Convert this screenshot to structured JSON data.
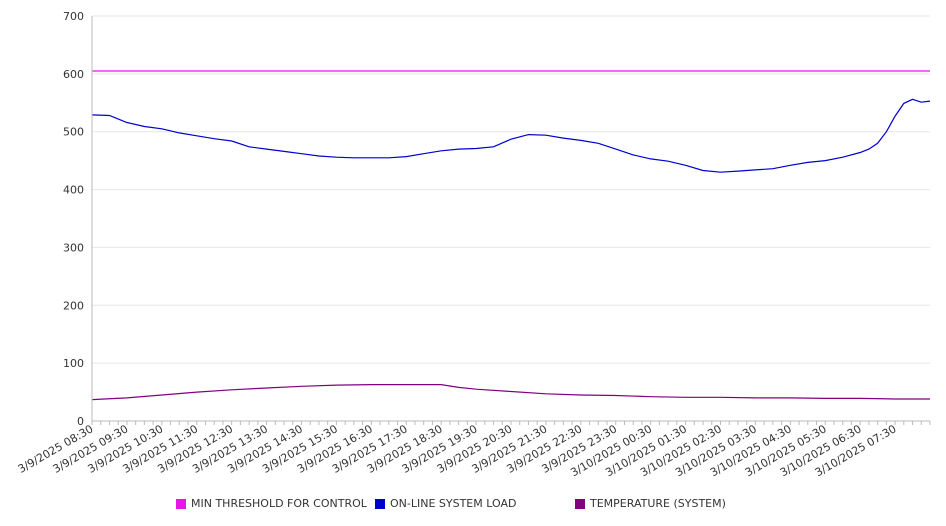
{
  "chart_data": {
    "type": "line",
    "title": "",
    "xlabel": "",
    "ylabel": "",
    "ylim": [
      0,
      700
    ],
    "yticks": [
      0,
      100,
      200,
      300,
      400,
      500,
      600,
      700
    ],
    "grid": "horizontal",
    "legend_position": "bottom",
    "x_start": "3/9/2025 08:30",
    "x_end": "3/10/2025 08:30",
    "x_tick_labels": [
      "3/9/2025 08:30",
      "3/9/2025 09:30",
      "3/9/2025 10:30",
      "3/9/2025 11:30",
      "3/9/2025 12:30",
      "3/9/2025 13:30",
      "3/9/2025 14:30",
      "3/9/2025 15:30",
      "3/9/2025 16:30",
      "3/9/2025 17:30",
      "3/9/2025 18:30",
      "3/9/2025 19:30",
      "3/9/2025 20:30",
      "3/9/2025 21:30",
      "3/9/2025 22:30",
      "3/9/2025 23:30",
      "3/10/2025 00:30",
      "3/10/2025 01:30",
      "3/10/2025 02:30",
      "3/10/2025 03:30",
      "3/10/2025 04:30",
      "3/10/2025 05:30",
      "3/10/2025 06:30",
      "3/10/2025 07:30"
    ],
    "series": [
      {
        "name": "MIN THRESHOLD FOR CONTROL",
        "color": "#e815e8",
        "points": [
          {
            "x": "3/9/2025 08:30",
            "y": 605
          },
          {
            "x": "3/10/2025 08:30",
            "y": 605
          }
        ]
      },
      {
        "name": "ON-LINE SYSTEM LOAD",
        "color": "#0000cc",
        "points": [
          {
            "x": "3/9/2025 08:30",
            "y": 529
          },
          {
            "x": "3/9/2025 09:00",
            "y": 528
          },
          {
            "x": "3/9/2025 09:30",
            "y": 516
          },
          {
            "x": "3/9/2025 10:00",
            "y": 509
          },
          {
            "x": "3/9/2025 10:30",
            "y": 505
          },
          {
            "x": "3/9/2025 11:00",
            "y": 498
          },
          {
            "x": "3/9/2025 11:30",
            "y": 493
          },
          {
            "x": "3/9/2025 12:00",
            "y": 488
          },
          {
            "x": "3/9/2025 12:30",
            "y": 484
          },
          {
            "x": "3/9/2025 13:00",
            "y": 474
          },
          {
            "x": "3/9/2025 13:30",
            "y": 470
          },
          {
            "x": "3/9/2025 14:00",
            "y": 466
          },
          {
            "x": "3/9/2025 14:30",
            "y": 462
          },
          {
            "x": "3/9/2025 15:00",
            "y": 458
          },
          {
            "x": "3/9/2025 15:30",
            "y": 456
          },
          {
            "x": "3/9/2025 16:00",
            "y": 455
          },
          {
            "x": "3/9/2025 16:30",
            "y": 455
          },
          {
            "x": "3/9/2025 17:00",
            "y": 455
          },
          {
            "x": "3/9/2025 17:30",
            "y": 457
          },
          {
            "x": "3/9/2025 18:00",
            "y": 462
          },
          {
            "x": "3/9/2025 18:30",
            "y": 467
          },
          {
            "x": "3/9/2025 19:00",
            "y": 470
          },
          {
            "x": "3/9/2025 19:30",
            "y": 471
          },
          {
            "x": "3/9/2025 20:00",
            "y": 474
          },
          {
            "x": "3/9/2025 20:30",
            "y": 487
          },
          {
            "x": "3/9/2025 21:00",
            "y": 495
          },
          {
            "x": "3/9/2025 21:30",
            "y": 494
          },
          {
            "x": "3/9/2025 22:00",
            "y": 489
          },
          {
            "x": "3/9/2025 22:30",
            "y": 485
          },
          {
            "x": "3/9/2025 23:00",
            "y": 480
          },
          {
            "x": "3/9/2025 23:30",
            "y": 470
          },
          {
            "x": "3/10/2025 00:00",
            "y": 460
          },
          {
            "x": "3/10/2025 00:30",
            "y": 453
          },
          {
            "x": "3/10/2025 01:00",
            "y": 449
          },
          {
            "x": "3/10/2025 01:30",
            "y": 442
          },
          {
            "x": "3/10/2025 02:00",
            "y": 433
          },
          {
            "x": "3/10/2025 02:30",
            "y": 430
          },
          {
            "x": "3/10/2025 03:00",
            "y": 432
          },
          {
            "x": "3/10/2025 03:30",
            "y": 434
          },
          {
            "x": "3/10/2025 04:00",
            "y": 436
          },
          {
            "x": "3/10/2025 04:30",
            "y": 442
          },
          {
            "x": "3/10/2025 05:00",
            "y": 447
          },
          {
            "x": "3/10/2025 05:30",
            "y": 450
          },
          {
            "x": "3/10/2025 06:00",
            "y": 456
          },
          {
            "x": "3/10/2025 06:30",
            "y": 464
          },
          {
            "x": "3/10/2025 06:45",
            "y": 470
          },
          {
            "x": "3/10/2025 07:00",
            "y": 480
          },
          {
            "x": "3/10/2025 07:15",
            "y": 500
          },
          {
            "x": "3/10/2025 07:30",
            "y": 527
          },
          {
            "x": "3/10/2025 07:45",
            "y": 549
          },
          {
            "x": "3/10/2025 08:00",
            "y": 556
          },
          {
            "x": "3/10/2025 08:15",
            "y": 551
          },
          {
            "x": "3/10/2025 08:30",
            "y": 553
          }
        ]
      },
      {
        "name": "TEMPERATURE (SYSTEM)",
        "color": "#800080",
        "points": [
          {
            "x": "3/9/2025 08:30",
            "y": 37
          },
          {
            "x": "3/9/2025 09:30",
            "y": 40
          },
          {
            "x": "3/9/2025 10:30",
            "y": 45
          },
          {
            "x": "3/9/2025 11:30",
            "y": 50
          },
          {
            "x": "3/9/2025 12:30",
            "y": 54
          },
          {
            "x": "3/9/2025 13:30",
            "y": 57
          },
          {
            "x": "3/9/2025 14:30",
            "y": 60
          },
          {
            "x": "3/9/2025 15:30",
            "y": 62
          },
          {
            "x": "3/9/2025 16:30",
            "y": 63
          },
          {
            "x": "3/9/2025 17:30",
            "y": 63
          },
          {
            "x": "3/9/2025 18:30",
            "y": 63
          },
          {
            "x": "3/9/2025 19:00",
            "y": 58
          },
          {
            "x": "3/9/2025 19:30",
            "y": 55
          },
          {
            "x": "3/9/2025 20:30",
            "y": 51
          },
          {
            "x": "3/9/2025 21:30",
            "y": 47
          },
          {
            "x": "3/9/2025 22:30",
            "y": 45
          },
          {
            "x": "3/9/2025 23:30",
            "y": 44
          },
          {
            "x": "3/10/2025 00:30",
            "y": 42
          },
          {
            "x": "3/10/2025 01:30",
            "y": 41
          },
          {
            "x": "3/10/2025 02:30",
            "y": 41
          },
          {
            "x": "3/10/2025 03:30",
            "y": 40
          },
          {
            "x": "3/10/2025 04:30",
            "y": 40
          },
          {
            "x": "3/10/2025 05:30",
            "y": 39
          },
          {
            "x": "3/10/2025 06:30",
            "y": 39
          },
          {
            "x": "3/10/2025 07:30",
            "y": 38
          },
          {
            "x": "3/10/2025 08:30",
            "y": 38
          }
        ]
      }
    ]
  },
  "legend": {
    "items": [
      {
        "label": "MIN THRESHOLD FOR CONTROL",
        "color": "#e815e8"
      },
      {
        "label": "ON-LINE SYSTEM LOAD",
        "color": "#0000cc"
      },
      {
        "label": "TEMPERATURE (SYSTEM)",
        "color": "#800080"
      }
    ]
  }
}
